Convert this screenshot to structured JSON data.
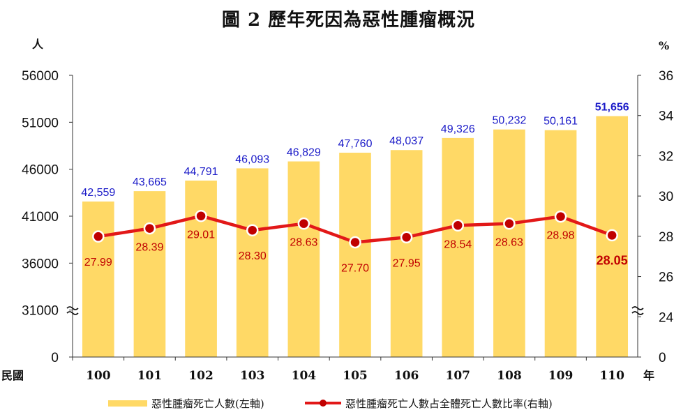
{
  "title": "圖 2  歷年死因為惡性腫瘤概況",
  "units": {
    "left": "人",
    "right": "%"
  },
  "axis_labels": {
    "x_prefix": "民國",
    "x_suffix": "年"
  },
  "colors": {
    "bar": "#FFD966",
    "bar_label": "#1A1AC8",
    "line": "#E21818",
    "marker": "#C00000",
    "rate_label": "#C00000"
  },
  "legend": {
    "bar_label": "惡性腫瘤死亡人數(左軸)",
    "line_label": "惡性腫瘤死亡人數占全體死亡人數比率(右軸)"
  },
  "chart_data": {
    "type": "bar",
    "title": "圖 2  歷年死因為惡性腫瘤概況",
    "categories": [
      "100",
      "101",
      "102",
      "103",
      "104",
      "105",
      "106",
      "107",
      "108",
      "109",
      "110"
    ],
    "series": [
      {
        "name": "惡性腫瘤死亡人數(左軸)",
        "type": "bar",
        "axis": "left",
        "values": [
          42559,
          43665,
          44791,
          46093,
          46829,
          47760,
          48037,
          49326,
          50232,
          50161,
          51656
        ],
        "labels": [
          "42,559",
          "43,665",
          "44,791",
          "46,093",
          "46,829",
          "47,760",
          "48,037",
          "49,326",
          "50,232",
          "50,161",
          "51,656"
        ]
      },
      {
        "name": "惡性腫瘤死亡人數占全體死亡人數比率(右軸)",
        "type": "line",
        "axis": "right",
        "values": [
          27.99,
          28.39,
          29.01,
          28.3,
          28.63,
          27.7,
          27.95,
          28.54,
          28.63,
          28.98,
          28.05
        ],
        "labels": [
          "27.99",
          "28.39",
          "29.01",
          "28.30",
          "28.63",
          "27.70",
          "27.95",
          "28.54",
          "28.63",
          "28.98",
          "28.05"
        ]
      }
    ],
    "left_axis": {
      "ticks": [
        "0",
        "31000",
        "36000",
        "41000",
        "46000",
        "51000",
        "56000"
      ],
      "tick_values": [
        0,
        31000,
        36000,
        41000,
        46000,
        51000,
        56000
      ],
      "range": [
        26000,
        56000
      ],
      "broken": true
    },
    "right_axis": {
      "ticks": [
        "0",
        "24",
        "26",
        "28",
        "30",
        "32",
        "34",
        "36"
      ],
      "tick_values": [
        0,
        24,
        26,
        28,
        30,
        32,
        34,
        36
      ],
      "range": [
        22,
        36
      ],
      "broken": true
    },
    "grid": false,
    "legend_position": "bottom"
  }
}
